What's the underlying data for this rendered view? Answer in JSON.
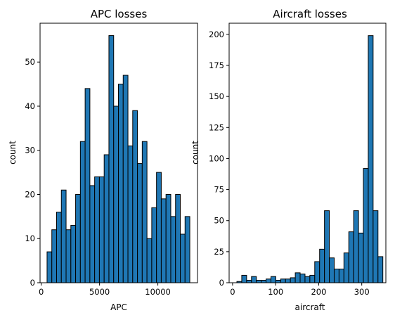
{
  "chart_data": [
    {
      "type": "bar",
      "title": "APC losses",
      "xlabel": "APC",
      "ylabel": "count",
      "xlim": [
        -100,
        13400
      ],
      "ylim": [
        0,
        58.8
      ],
      "xticks": [
        0,
        5000,
        10000
      ],
      "yticks": [
        0,
        10,
        20,
        30,
        40,
        50
      ],
      "bin_start": 500,
      "bin_width": 408,
      "values": [
        7,
        12,
        16,
        21,
        12,
        13,
        20,
        32,
        44,
        22,
        24,
        24,
        29,
        56,
        40,
        45,
        47,
        31,
        39,
        27,
        32,
        10,
        17,
        25,
        19,
        20,
        15,
        20,
        11,
        15
      ],
      "bar_color": "#1f77b4",
      "edge_color": "#000000",
      "grid": false
    },
    {
      "type": "bar",
      "title": "Aircraft losses",
      "xlabel": "aircraft",
      "ylabel": "count",
      "xlim": [
        -8,
        356
      ],
      "ylim": [
        0,
        209
      ],
      "xticks": [
        0,
        100,
        200,
        300
      ],
      "yticks": [
        0,
        25,
        50,
        75,
        100,
        125,
        150,
        175,
        200
      ],
      "bin_start": 10,
      "bin_width": 11.3,
      "values": [
        1,
        6,
        2,
        5,
        2,
        2,
        3,
        5,
        2,
        3,
        3,
        4,
        8,
        7,
        5,
        6,
        17,
        27,
        58,
        20,
        11,
        11,
        24,
        41,
        58,
        40,
        92,
        199,
        58,
        21
      ],
      "bar_color": "#1f77b4",
      "edge_color": "#000000",
      "grid": false
    }
  ]
}
